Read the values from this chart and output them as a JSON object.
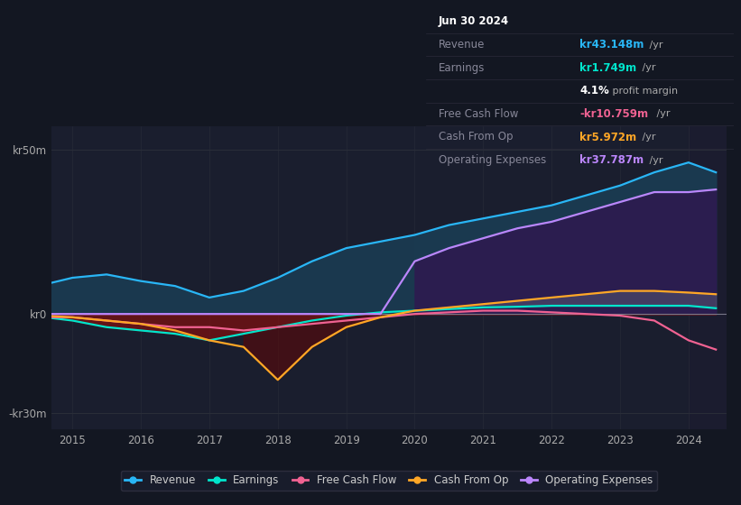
{
  "bg_color": "#131722",
  "plot_bg_color": "#1a1e2e",
  "grid_color": "#2a2e39",
  "years": [
    2014.6,
    2015.0,
    2015.5,
    2016.0,
    2016.5,
    2017.0,
    2017.5,
    2018.0,
    2018.5,
    2019.0,
    2019.5,
    2020.0,
    2020.5,
    2021.0,
    2021.5,
    2022.0,
    2022.5,
    2023.0,
    2023.5,
    2024.0,
    2024.4
  ],
  "revenue": [
    9,
    11,
    12,
    10,
    8.5,
    5,
    7,
    11,
    16,
    20,
    22,
    24,
    27,
    29,
    31,
    33,
    36,
    39,
    43,
    46,
    43
  ],
  "earnings": [
    -1,
    -2,
    -4,
    -5,
    -6,
    -8,
    -6,
    -4,
    -2,
    -0.5,
    0.5,
    1,
    1.5,
    2,
    2.2,
    2.5,
    2.5,
    2.5,
    2.5,
    2.5,
    1.75
  ],
  "fcf": [
    -1,
    -1,
    -2,
    -3,
    -4,
    -4,
    -5,
    -4,
    -3,
    -2,
    -1,
    0,
    0.5,
    1,
    1,
    0.5,
    0,
    -0.5,
    -2,
    -8,
    -10.8
  ],
  "cash_from_op": [
    -0.5,
    -1,
    -2,
    -3,
    -5,
    -8,
    -10,
    -20,
    -10,
    -4,
    -1,
    1,
    2,
    3,
    4,
    5,
    6,
    7,
    7,
    6.5,
    6.0
  ],
  "op_expenses": [
    0,
    0,
    0,
    0,
    0,
    0,
    0,
    0,
    0,
    0,
    0,
    16,
    20,
    23,
    26,
    28,
    31,
    34,
    37,
    37,
    37.8
  ],
  "xlim": [
    2014.7,
    2024.55
  ],
  "ylim": [
    -35,
    57
  ],
  "yticks": [
    -30,
    0,
    50
  ],
  "ytick_labels": [
    "-kr30m",
    "kr0",
    "kr50m"
  ],
  "xticks": [
    2015,
    2016,
    2017,
    2018,
    2019,
    2020,
    2021,
    2022,
    2023,
    2024
  ],
  "colors": {
    "revenue": "#29b6f6",
    "earnings": "#00e5cc",
    "fcf": "#f06292",
    "cash_from_op": "#ffa726",
    "op_expenses": "#bb86fc"
  },
  "fill_revenue_bg": "#1a3a50",
  "fill_opex_bg": "#2a1a4a",
  "fill_neg_bg": "#6b1010",
  "fill_gap_bg": "#5a5a6a",
  "forecast_start": 2024.0,
  "legend": [
    {
      "label": "Revenue",
      "color": "#29b6f6"
    },
    {
      "label": "Earnings",
      "color": "#00e5cc"
    },
    {
      "label": "Free Cash Flow",
      "color": "#f06292"
    },
    {
      "label": "Cash From Op",
      "color": "#ffa726"
    },
    {
      "label": "Operating Expenses",
      "color": "#bb86fc"
    }
  ],
  "info_box": {
    "date": "Jun 30 2024",
    "rows": [
      {
        "label": "Revenue",
        "val": "kr43.148m",
        "val_color": "#29b6f6",
        "sfx": " /yr"
      },
      {
        "label": "Earnings",
        "val": "kr1.749m",
        "val_color": "#00e5cc",
        "sfx": " /yr"
      },
      {
        "label": "",
        "val": "4.1%",
        "val_color": "#ffffff",
        "sfx": " profit margin"
      },
      {
        "label": "Free Cash Flow",
        "val": "-kr10.759m",
        "val_color": "#f06292",
        "sfx": " /yr"
      },
      {
        "label": "Cash From Op",
        "val": "kr5.972m",
        "val_color": "#ffa726",
        "sfx": " /yr"
      },
      {
        "label": "Operating Expenses",
        "val": "kr37.787m",
        "val_color": "#bb86fc",
        "sfx": " /yr"
      }
    ]
  }
}
